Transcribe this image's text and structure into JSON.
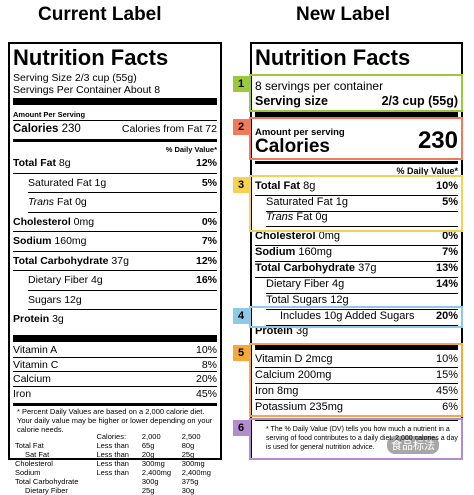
{
  "headings": {
    "current": "Current Label",
    "new": "New Label"
  },
  "current": {
    "title": "Nutrition Facts",
    "serving_size": "Serving Size 2/3 cup (55g)",
    "servings_per_container": "Servings Per Container About 8",
    "amount_per_serving": "Amount Per Serving",
    "calories_label": "Calories",
    "calories_value": "230",
    "calories_from_fat": "Calories from Fat 72",
    "pct_dv_header": "% Daily Value*",
    "nutrients": [
      {
        "label": "Total Fat",
        "amount": "8g",
        "dv": "12%",
        "bold": true,
        "indent": 0
      },
      {
        "label": "Saturated Fat",
        "amount": "1g",
        "dv": "5%",
        "bold": false,
        "indent": 1
      },
      {
        "label": "Trans",
        "label2": "Fat",
        "amount": "0g",
        "dv": "",
        "bold": false,
        "indent": 1
      },
      {
        "label": "Cholesterol",
        "amount": "0mg",
        "dv": "0%",
        "bold": true,
        "indent": 0
      },
      {
        "label": "Sodium",
        "amount": "160mg",
        "dv": "7%",
        "bold": true,
        "indent": 0
      },
      {
        "label": "Total Carbohydrate",
        "amount": "37g",
        "dv": "12%",
        "bold": true,
        "indent": 0
      },
      {
        "label": "Dietary Fiber",
        "amount": "4g",
        "dv": "16%",
        "bold": false,
        "indent": 1
      },
      {
        "label": "Sugars",
        "amount": "12g",
        "dv": "",
        "bold": false,
        "indent": 1
      },
      {
        "label": "Protein",
        "amount": "3g",
        "dv": "",
        "bold": true,
        "indent": 0
      }
    ],
    "vitamins": [
      {
        "label": "Vitamin A",
        "dv": "10%"
      },
      {
        "label": "Vitamin C",
        "dv": "8%"
      },
      {
        "label": "Calcium",
        "dv": "20%"
      },
      {
        "label": "Iron",
        "dv": "45%"
      }
    ],
    "footnote": "* Percent Daily Values are based on a 2,000 calorie diet. Your daily value may be higher or lower depending on your calorie needs.",
    "footnote_table": {
      "header": [
        "",
        "Calories:",
        "2,000",
        "2,500"
      ],
      "rows": [
        [
          "Total Fat",
          "Less than",
          "65g",
          "80g"
        ],
        [
          "Sat Fat",
          "Less than",
          "20g",
          "25g"
        ],
        [
          "Cholesterol",
          "Less than",
          "300mg",
          "300mg"
        ],
        [
          "Sodium",
          "Less than",
          "2,400mg",
          "2,400mg"
        ],
        [
          "Total Carbohydrate",
          "",
          "300g",
          "375g"
        ],
        [
          "Dietary Fiber",
          "",
          "25g",
          "30g"
        ]
      ]
    }
  },
  "new": {
    "title": "Nutrition Facts",
    "servings_per_container": "8 servings per container",
    "serving_size_label": "Serving size",
    "serving_size_value": "2/3 cup (55g)",
    "amount_per_serving": "Amount per serving",
    "calories_label": "Calories",
    "calories_value": "230",
    "pct_dv_header": "% Daily Value*",
    "nutrients": [
      {
        "label": "Total Fat",
        "amount": "8g",
        "dv": "10%",
        "bold": true,
        "indent": 0
      },
      {
        "label": "Saturated Fat",
        "amount": "1g",
        "dv": "5%",
        "bold": false,
        "indent": 1
      },
      {
        "label": "Trans",
        "label2": "Fat",
        "amount": "0g",
        "dv": "",
        "bold": false,
        "indent": 1
      },
      {
        "label": "Cholesterol",
        "amount": "0mg",
        "dv": "0%",
        "bold": true,
        "indent": 0
      },
      {
        "label": "Sodium",
        "amount": "160mg",
        "dv": "7%",
        "bold": true,
        "indent": 0
      },
      {
        "label": "Total Carbohydrate",
        "amount": "37g",
        "dv": "13%",
        "bold": true,
        "indent": 0
      },
      {
        "label": "Dietary Fiber",
        "amount": "4g",
        "dv": "14%",
        "bold": false,
        "indent": 1
      },
      {
        "label": "Total Sugars",
        "amount": "12g",
        "dv": "",
        "bold": false,
        "indent": 1
      },
      {
        "label": "Includes 10g Added Sugars",
        "amount": "",
        "dv": "20%",
        "bold": false,
        "indent": 2
      },
      {
        "label": "Protein",
        "amount": "3g",
        "dv": "",
        "bold": true,
        "indent": 0
      }
    ],
    "vitamins": [
      {
        "label": "Vitamin D",
        "amount": "2mcg",
        "dv": "10%"
      },
      {
        "label": "Calcium",
        "amount": "200mg",
        "dv": "15%"
      },
      {
        "label": "Iron",
        "amount": "8mg",
        "dv": "45%"
      },
      {
        "label": "Potassium",
        "amount": "235mg",
        "dv": "6%"
      }
    ],
    "footnote": "* The % Daily Value (DV) tells you how much a nutrient in a serving of food contributes to a daily diet. 2,000 calories a day is used for general nutrition advice.",
    "callouts": [
      {
        "num": "1",
        "color": "#9cc83c"
      },
      {
        "num": "2",
        "color": "#f07a5a"
      },
      {
        "num": "3",
        "color": "#f5d352"
      },
      {
        "num": "4",
        "color": "#8fc9e8"
      },
      {
        "num": "5",
        "color": "#f5a93c"
      },
      {
        "num": "6",
        "color": "#b38ccf"
      }
    ]
  },
  "watermark": "食品标法"
}
